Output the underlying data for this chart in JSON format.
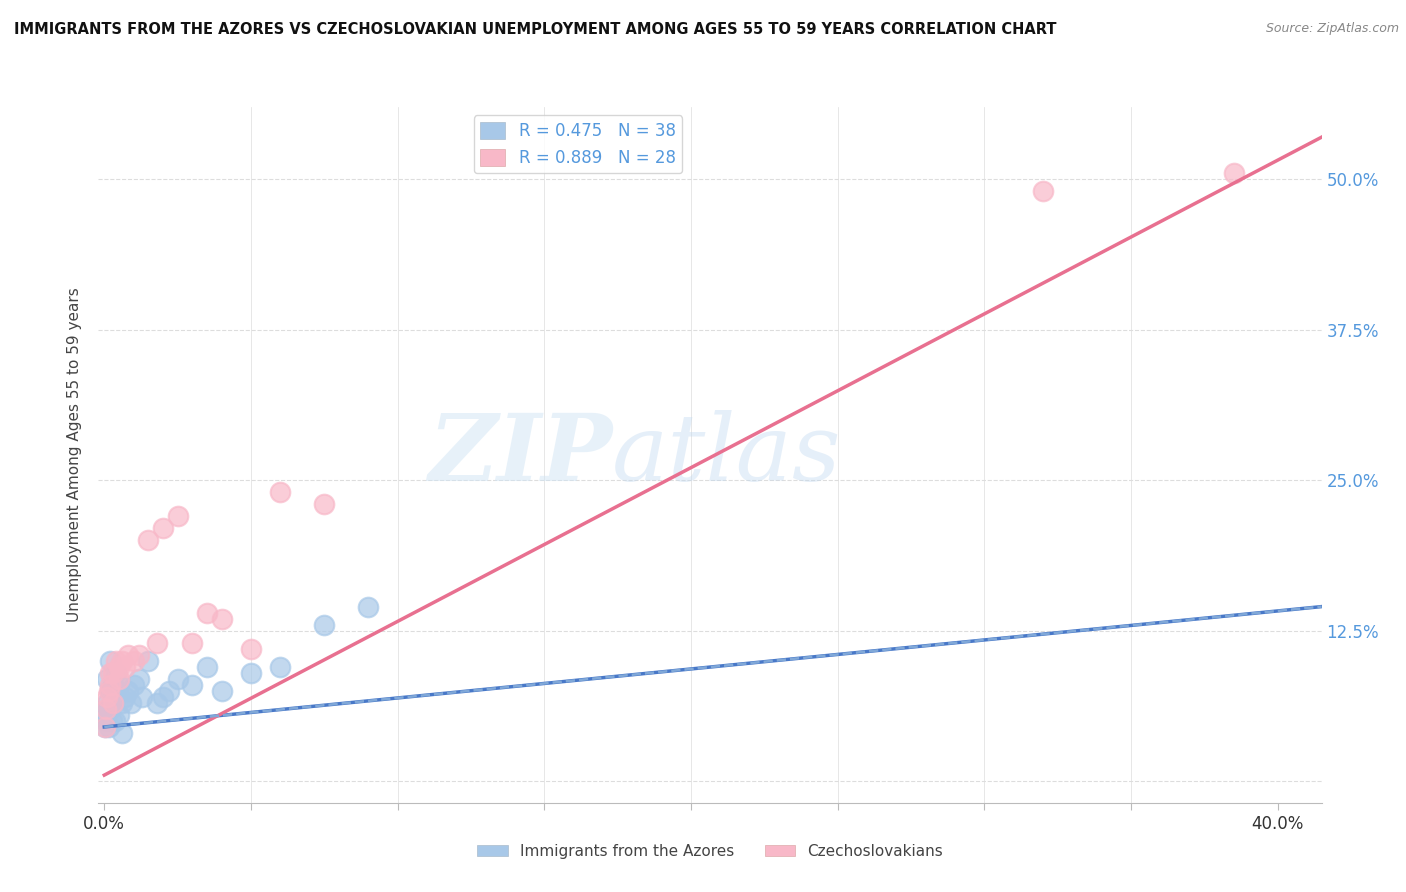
{
  "title": "IMMIGRANTS FROM THE AZORES VS CZECHOSLOVAKIAN UNEMPLOYMENT AMONG AGES 55 TO 59 YEARS CORRELATION CHART",
  "source": "Source: ZipAtlas.com",
  "ylabel": "Unemployment Among Ages 55 to 59 years",
  "ylabel_right_ticks": [
    0.0,
    0.125,
    0.25,
    0.375,
    0.5
  ],
  "ylabel_right_labels": [
    "",
    "12.5%",
    "25.0%",
    "37.5%",
    "50.0%"
  ],
  "xmin": -0.002,
  "xmax": 0.415,
  "ymin": -0.018,
  "ymax": 0.56,
  "legend1_label": "R = 0.475   N = 38",
  "legend2_label": "R = 0.889   N = 28",
  "legend_label_azores": "Immigrants from the Azores",
  "legend_label_czech": "Czechoslovakians",
  "color_azores": "#a8c8e8",
  "color_czech": "#f8b8c8",
  "color_azores_line": "#4878c8",
  "color_czech_line": "#e87090",
  "watermark_zip": "ZIP",
  "watermark_atlas": "atlas",
  "azores_x": [
    0.0003,
    0.0005,
    0.0007,
    0.001,
    0.001,
    0.0012,
    0.0015,
    0.002,
    0.002,
    0.002,
    0.0025,
    0.003,
    0.003,
    0.0035,
    0.004,
    0.004,
    0.005,
    0.005,
    0.006,
    0.006,
    0.007,
    0.008,
    0.009,
    0.01,
    0.012,
    0.013,
    0.015,
    0.018,
    0.02,
    0.022,
    0.025,
    0.03,
    0.035,
    0.04,
    0.05,
    0.06,
    0.075,
    0.09
  ],
  "azores_y": [
    0.045,
    0.05,
    0.055,
    0.065,
    0.085,
    0.06,
    0.045,
    0.075,
    0.06,
    0.1,
    0.05,
    0.08,
    0.065,
    0.05,
    0.09,
    0.07,
    0.055,
    0.08,
    0.065,
    0.04,
    0.07,
    0.075,
    0.065,
    0.08,
    0.085,
    0.07,
    0.1,
    0.065,
    0.07,
    0.075,
    0.085,
    0.08,
    0.095,
    0.075,
    0.09,
    0.095,
    0.13,
    0.145
  ],
  "czech_x": [
    0.0003,
    0.0005,
    0.001,
    0.0015,
    0.002,
    0.002,
    0.003,
    0.003,
    0.004,
    0.005,
    0.005,
    0.006,
    0.007,
    0.008,
    0.01,
    0.012,
    0.015,
    0.018,
    0.02,
    0.025,
    0.03,
    0.035,
    0.04,
    0.05,
    0.06,
    0.075,
    0.32,
    0.385
  ],
  "czech_y": [
    0.045,
    0.06,
    0.07,
    0.075,
    0.08,
    0.09,
    0.09,
    0.065,
    0.1,
    0.085,
    0.095,
    0.1,
    0.095,
    0.105,
    0.1,
    0.105,
    0.2,
    0.115,
    0.21,
    0.22,
    0.115,
    0.14,
    0.135,
    0.11,
    0.24,
    0.23,
    0.49,
    0.505
  ],
  "azores_trendline_x": [
    0.0,
    0.415
  ],
  "azores_trendline_y": [
    0.045,
    0.145
  ],
  "czech_trendline_x": [
    0.0,
    0.415
  ],
  "czech_trendline_y": [
    0.005,
    0.535
  ]
}
